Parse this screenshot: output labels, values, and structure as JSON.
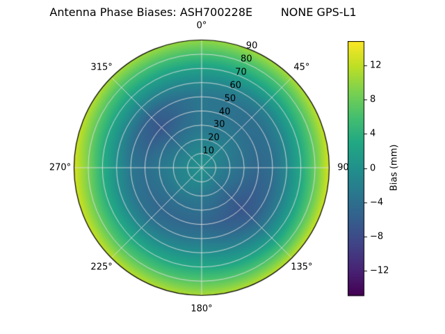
{
  "chart_data": {
    "type": "heatmap",
    "projection": "polar",
    "title": "Antenna Phase Biases: ASH700228E        NONE GPS-L1",
    "angular_tick_labels": [
      "0°",
      "45°",
      "90",
      "135°",
      "180°",
      "225°",
      "270°",
      "315°"
    ],
    "radial_tick_labels": [
      "10",
      "20",
      "30",
      "40",
      "50",
      "60",
      "70",
      "80",
      "90"
    ],
    "azimuth_deg": [
      0,
      45,
      90,
      135,
      180,
      225,
      270,
      315
    ],
    "zenith_deg": [
      0,
      10,
      20,
      30,
      40,
      50,
      60,
      70,
      80,
      90
    ],
    "values_mm": [
      [
        0,
        -1,
        -2,
        -3,
        -3,
        -3,
        -1,
        2,
        6,
        10
      ],
      [
        0,
        -1,
        -2,
        -3,
        -4,
        -4,
        -2,
        2,
        6,
        11
      ],
      [
        0,
        -2,
        -3,
        -4,
        -5,
        -4,
        -1,
        3,
        8,
        13
      ],
      [
        0,
        -2,
        -4,
        -6,
        -7,
        -6,
        -3,
        1,
        6,
        12
      ],
      [
        0,
        -1,
        -3,
        -4,
        -5,
        -3,
        0,
        3,
        7,
        11
      ],
      [
        0,
        -1,
        -2,
        -4,
        -5,
        -4,
        -1,
        3,
        7,
        12
      ],
      [
        0,
        -1,
        -2,
        -3,
        -4,
        -3,
        0,
        4,
        9,
        13
      ],
      [
        0,
        -1,
        -3,
        -5,
        -7,
        -6,
        -2,
        2,
        6,
        11
      ]
    ],
    "vmin": -14.8,
    "vmax": 14.8,
    "grid": true,
    "colormap": "viridis",
    "colormap_stops": [
      [
        0.0,
        "#440154"
      ],
      [
        0.1,
        "#482475"
      ],
      [
        0.2,
        "#414487"
      ],
      [
        0.3,
        "#355f8d"
      ],
      [
        0.4,
        "#2a788e"
      ],
      [
        0.5,
        "#21918c"
      ],
      [
        0.6,
        "#22a884"
      ],
      [
        0.7,
        "#44bf70"
      ],
      [
        0.8,
        "#7ad151"
      ],
      [
        0.9,
        "#bddf26"
      ],
      [
        1.0,
        "#fde725"
      ]
    ],
    "grid_color": "#dedede",
    "colorbar": {
      "label": "Bias (mm)",
      "tick_labels": [
        "12",
        "8",
        "4",
        "0",
        "−4",
        "−8",
        "−12"
      ],
      "tick_values": [
        12,
        8,
        4,
        0,
        -4,
        -8,
        -12
      ]
    }
  }
}
